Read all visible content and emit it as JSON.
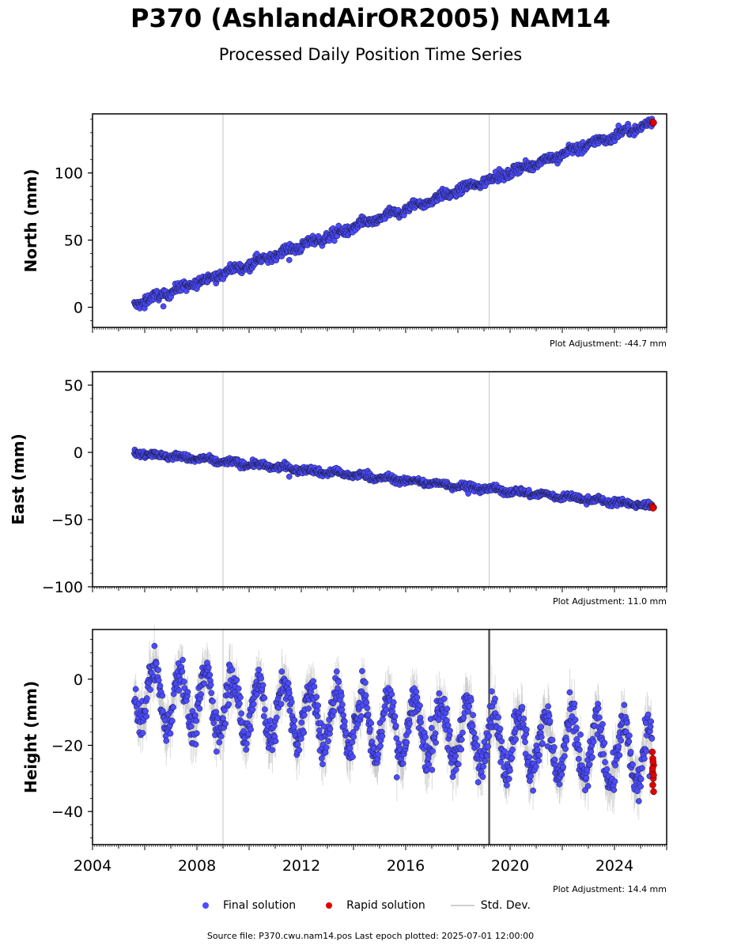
{
  "title": "P370 (AshlandAirOR2005) NAM14",
  "subtitle": "Processed Daily Position Time Series",
  "legend": {
    "final": "Final solution",
    "rapid": "Rapid solution",
    "std": "Std. Dev."
  },
  "footer": "Source file: P370.cwu.nam14.pos  Last epoch plotted: 2025-07-01 12:00:00",
  "colors": {
    "final": "#4b4bff",
    "rapid": "#e00000",
    "outline": "#1a1a3a",
    "std": "#c8c8c8"
  },
  "chart_data": [
    {
      "type": "scatter",
      "ylabel": "North (mm)",
      "adjustment": "Plot Adjustment: -44.7 mm",
      "ylim": [
        -15,
        144
      ],
      "yticks": [
        0,
        50,
        100
      ],
      "xlim": [
        2004.0,
        2026.0
      ],
      "trend": [
        [
          2005.6,
          2
        ],
        [
          2025.5,
          138
        ]
      ],
      "seasonal_amp": 1.5,
      "noise": 2.5,
      "rapid": [
        [
          2025.45,
          138
        ],
        [
          2025.48,
          137
        ],
        [
          2025.5,
          137.5
        ]
      ]
    },
    {
      "type": "scatter",
      "ylabel": "East (mm)",
      "adjustment": "Plot Adjustment: 11.0 mm",
      "ylim": [
        -100,
        60
      ],
      "yticks": [
        50,
        0,
        -50,
        -100
      ],
      "xlim": [
        2004.0,
        2026.0
      ],
      "trend": [
        [
          2005.6,
          0
        ],
        [
          2025.5,
          -40
        ]
      ],
      "seasonal_amp": 1.0,
      "noise": 1.8,
      "rapid": [
        [
          2025.45,
          -40
        ],
        [
          2025.5,
          -41
        ],
        [
          2025.48,
          -41.5
        ]
      ]
    },
    {
      "type": "scatter",
      "ylabel": "Height (mm)",
      "adjustment": "Plot Adjustment: 14.4 mm",
      "ylim": [
        -50,
        15
      ],
      "yticks": [
        0,
        -20,
        -40
      ],
      "xlim": [
        2004.0,
        2026.0
      ],
      "trend": [
        [
          2005.6,
          -4
        ],
        [
          2025.5,
          -24
        ]
      ],
      "seasonal_amp": 9,
      "noise": 4,
      "rapid": [
        [
          2025.45,
          -22
        ],
        [
          2025.47,
          -24
        ],
        [
          2025.5,
          -26
        ],
        [
          2025.46,
          -28
        ],
        [
          2025.49,
          -30
        ],
        [
          2025.47,
          -32
        ],
        [
          2025.5,
          -34
        ],
        [
          2025.48,
          -25
        ],
        [
          2025.46,
          -27
        ],
        [
          2025.5,
          -29
        ]
      ]
    }
  ],
  "xticks": [
    "2004",
    "2008",
    "2012",
    "2016",
    "2020",
    "2024"
  ],
  "xtick_values": [
    2004,
    2008,
    2012,
    2016,
    2020,
    2024
  ],
  "vlines": [
    2009.0,
    2019.2
  ]
}
